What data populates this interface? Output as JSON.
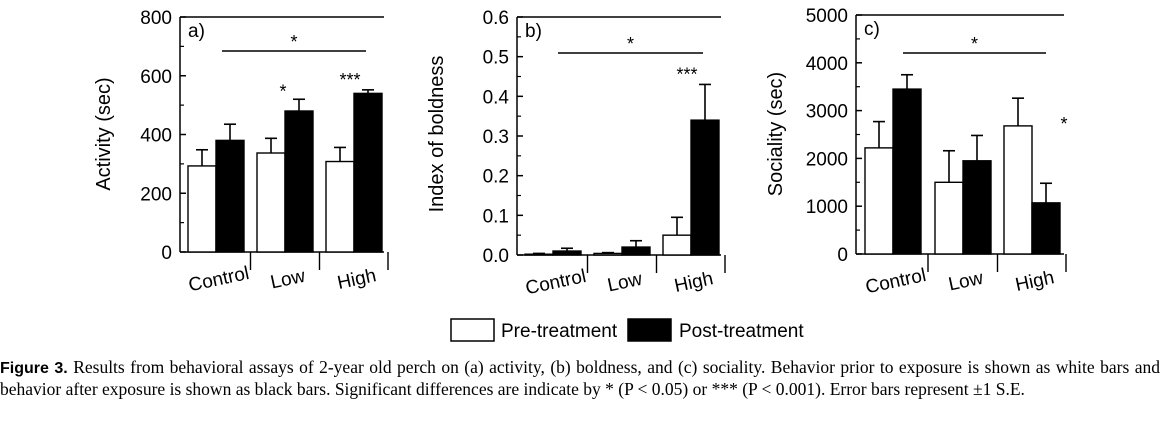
{
  "chart_data": [
    {
      "type": "bar",
      "panel_label": "a)",
      "ylabel": "Activity (sec)",
      "ylim": [
        0,
        800
      ],
      "yticks": [
        "0",
        "200",
        "400",
        "600",
        "800"
      ],
      "categories": [
        "Control",
        "Low",
        "High"
      ],
      "series": [
        {
          "values": [
            293,
            337,
            308
          ],
          "errors": [
            55,
            50,
            48
          ]
        },
        {
          "values": [
            380,
            480,
            540
          ],
          "errors": [
            55,
            40,
            12
          ]
        }
      ],
      "significance_markers": [
        "",
        "*",
        "***"
      ],
      "bracket_marker": "*"
    },
    {
      "type": "bar",
      "panel_label": "b)",
      "ylabel": "Index of boldness",
      "ylim": [
        0,
        0.6
      ],
      "yticks": [
        "0.0",
        "0.1",
        "0.2",
        "0.3",
        "0.4",
        "0.5",
        "0.6"
      ],
      "categories": [
        "Control",
        "Low",
        "High"
      ],
      "series": [
        {
          "values": [
            0.002,
            0.004,
            0.05
          ],
          "errors": [
            0.002,
            0.002,
            0.045
          ]
        },
        {
          "values": [
            0.01,
            0.02,
            0.34
          ],
          "errors": [
            0.007,
            0.016,
            0.09
          ]
        }
      ],
      "significance_markers": [
        "",
        "",
        "***"
      ],
      "bracket_marker": "*"
    },
    {
      "type": "bar",
      "panel_label": "c)",
      "ylabel": "Sociality (sec)",
      "ylim": [
        0,
        5000
      ],
      "yticks": [
        "0",
        "1000",
        "2000",
        "3000",
        "4000",
        "5000"
      ],
      "categories": [
        "Control",
        "Low",
        "High"
      ],
      "series": [
        {
          "values": [
            2220,
            1500,
            2680
          ],
          "errors": [
            550,
            660,
            580
          ]
        },
        {
          "values": [
            3450,
            1950,
            1070
          ],
          "errors": [
            300,
            530,
            410
          ]
        }
      ],
      "significance_markers": [
        "",
        "",
        "*"
      ],
      "bracket_marker": "*"
    }
  ],
  "legend": {
    "items": [
      {
        "label": "Pre-treatment",
        "color": "#ffffff"
      },
      {
        "label": "Post-treatment",
        "color": "#000000"
      }
    ]
  },
  "caption": {
    "lead": "Figure 3.",
    "text": " Results from behavioral assays of 2-year old perch on (a) activity, (b) boldness, and (c) sociality. Behavior prior to exposure is shown as white bars and behavior after exposure is shown as black bars. Significant differences are indicate by * (P < 0.05) or *** (P < 0.001). Error bars represent ±1 S.E."
  }
}
